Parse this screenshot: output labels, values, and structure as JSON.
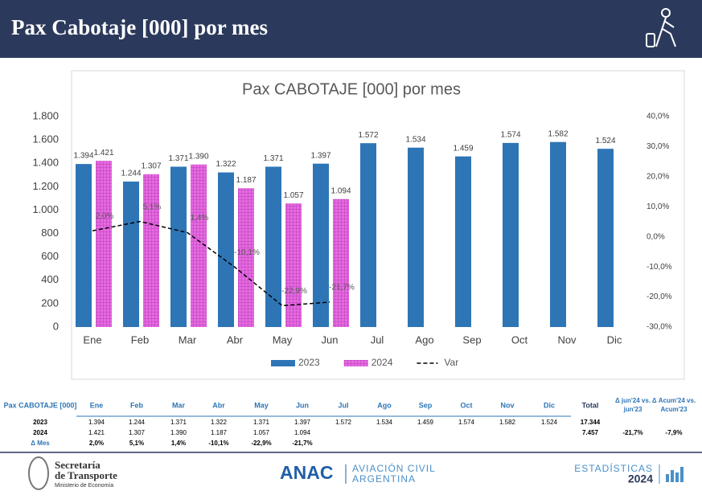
{
  "header": {
    "title": "Pax Cabotaje [000] por mes"
  },
  "chart_data": {
    "type": "bar",
    "title": "Pax CABOTAJE [000] por mes",
    "categories": [
      "Ene",
      "Feb",
      "Mar",
      "Abr",
      "May",
      "Jun",
      "Jul",
      "Ago",
      "Sep",
      "Oct",
      "Nov",
      "Dic"
    ],
    "series": [
      {
        "name": "2023",
        "color": "#2e75b6",
        "values": [
          1394,
          1244,
          1371,
          1322,
          1371,
          1397,
          1572,
          1534,
          1459,
          1574,
          1582,
          1524
        ],
        "value_labels": [
          "1.394",
          "1.244",
          "1.371",
          "1.322",
          "1.371",
          "1.397",
          "1.572",
          "1.534",
          "1.459",
          "1.574",
          "1.582",
          "1.524"
        ]
      },
      {
        "name": "2024",
        "color": "#d94fd6",
        "values": [
          1421,
          1307,
          1390,
          1187,
          1057,
          1094,
          null,
          null,
          null,
          null,
          null,
          null
        ],
        "value_labels": [
          "1.421",
          "1.307",
          "1.390",
          "1.187",
          "1.057",
          "1.094",
          null,
          null,
          null,
          null,
          null,
          null
        ]
      },
      {
        "name": "Var",
        "type": "line",
        "axis": "y2",
        "color": "#000000",
        "values": [
          2.0,
          5.1,
          1.4,
          -10.1,
          -22.9,
          -21.7,
          null,
          null,
          null,
          null,
          null,
          null
        ],
        "value_labels": [
          "2,0%",
          "5,1%",
          "1,4%",
          "-10,1%",
          "-22,9%",
          "-21,7%",
          null,
          null,
          null,
          null,
          null,
          null
        ]
      }
    ],
    "ylim": [
      0,
      1800
    ],
    "yticks": [
      0,
      {
        "value": 200,
        "label": "200"
      },
      {
        "value": 400,
        "label": "400"
      },
      {
        "value": 600,
        "label": "600"
      },
      {
        "value": 800,
        "label": "800"
      },
      {
        "value": 1000,
        "label": "1.000"
      },
      {
        "value": 1200,
        "label": "1.200"
      },
      {
        "value": 1400,
        "label": "1.400"
      },
      {
        "value": 1600,
        "label": "1.600"
      },
      {
        "value": 1800,
        "label": "1.800"
      }
    ],
    "y2lim": [
      -30,
      40
    ],
    "y2ticks": [
      {
        "value": -30,
        "label": "-30,0%"
      },
      {
        "value": -20,
        "label": "-20,0%"
      },
      {
        "value": -10,
        "label": "-10,0%"
      },
      {
        "value": 0,
        "label": "0,0%"
      },
      {
        "value": 10,
        "label": "10,0%"
      },
      {
        "value": 20,
        "label": "20,0%"
      },
      {
        "value": 30,
        "label": "30,0%"
      },
      {
        "value": 40,
        "label": "40,0%"
      }
    ],
    "legend": "bottom"
  },
  "table": {
    "header": [
      "Pax CABOTAJE [000]",
      "Ene",
      "Feb",
      "Mar",
      "Abr",
      "May",
      "Jun",
      "Jul",
      "Ago",
      "Sep",
      "Oct",
      "Nov",
      "Dic",
      "Total",
      "Δ jun'24 vs. jun'23",
      "Δ Acum'24 vs. Acum'23"
    ],
    "rows": [
      [
        "2023",
        "1.394",
        "1.244",
        "1.371",
        "1.322",
        "1.371",
        "1.397",
        "1.572",
        "1.534",
        "1.459",
        "1.574",
        "1.582",
        "1.524",
        "17.344",
        null,
        null
      ],
      [
        "2024",
        "1.421",
        "1.307",
        "1.390",
        "1.187",
        "1.057",
        "1.094",
        null,
        null,
        null,
        null,
        null,
        null,
        "7.457",
        "-21,7%",
        "-7,9%"
      ],
      [
        "Δ Mes",
        "2,0%",
        "5,1%",
        "1,4%",
        "-10,1%",
        "-22,9%",
        "-21,7%",
        null,
        null,
        null,
        null,
        null,
        null,
        null,
        null,
        null
      ]
    ]
  },
  "footer": {
    "org1": "Secretaría",
    "org2": "de Transporte",
    "org3": "Ministerio de Economía",
    "anac": "ANAC",
    "anac2": "AVIACIÓN CIVIL",
    "anac3": "ARGENTINA",
    "stats": "ESTADÍSTICAS",
    "year": "2024"
  }
}
